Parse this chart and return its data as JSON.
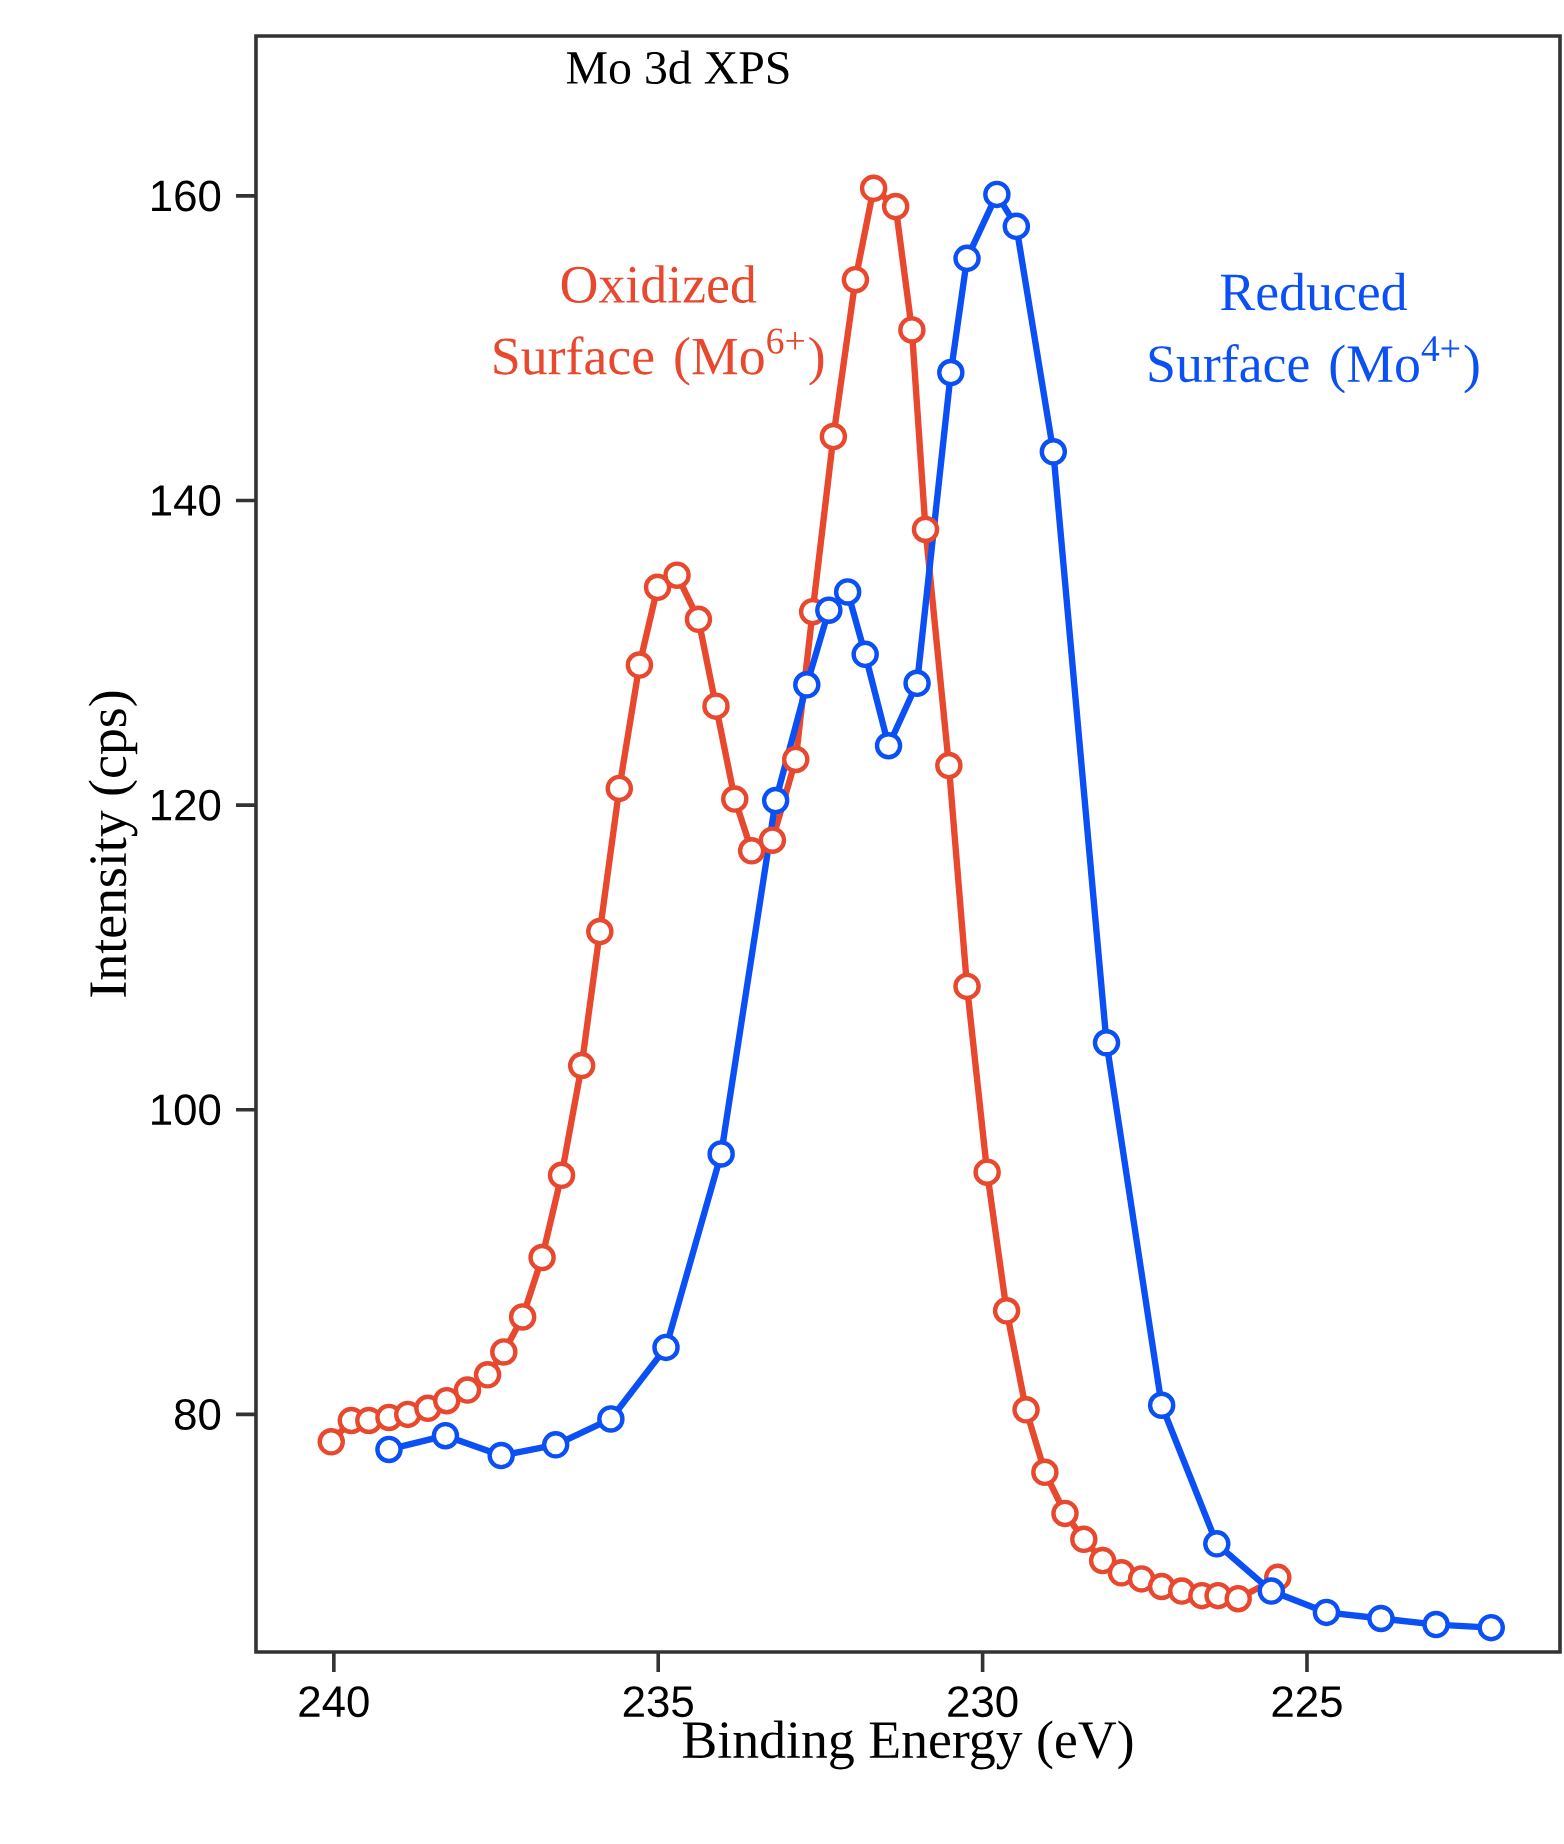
{
  "chart_data": {
    "type": "line",
    "title": "Mo 3d XPS",
    "xlabel": "Binding Energy (eV)",
    "ylabel": "Intensity (cps)",
    "xlim": [
      241.2,
      221.1
    ],
    "ylim": [
      64.4,
      170.5
    ],
    "xticks": [
      240,
      235,
      230,
      225
    ],
    "yticks": [
      80,
      100,
      120,
      140,
      160
    ],
    "grid": false,
    "legend": false,
    "marker": "circle",
    "line_style": "solid",
    "series": [
      {
        "name": "Oxidized Surface (Mo$^{6+}$)",
        "color": "#e8482e",
        "x": [
          240.04,
          239.73,
          239.46,
          239.15,
          238.86,
          238.55,
          238.26,
          237.94,
          237.63,
          237.38,
          237.09,
          236.79,
          236.49,
          236.18,
          235.9,
          235.6,
          235.29,
          235.01,
          234.71,
          234.38,
          234.11,
          233.82,
          233.56,
          233.24,
          232.88,
          232.62,
          232.3,
          231.96,
          231.68,
          231.34,
          231.09,
          230.88,
          230.52,
          230.24,
          229.93,
          229.63,
          229.33,
          229.04,
          228.73,
          228.44,
          228.15,
          227.86,
          227.55,
          227.24,
          226.93,
          226.62,
          226.37,
          226.06,
          225.45
        ],
        "values": [
          78.2,
          79.6,
          79.6,
          79.8,
          80.0,
          80.4,
          80.9,
          81.6,
          82.6,
          84.1,
          86.4,
          90.3,
          95.7,
          102.9,
          111.7,
          121.1,
          129.2,
          134.3,
          135.1,
          132.2,
          126.5,
          120.4,
          117.0,
          117.7,
          123.0,
          132.7,
          144.2,
          154.5,
          160.5,
          159.3,
          151.2,
          138.1,
          122.6,
          108.1,
          95.9,
          86.8,
          80.3,
          76.2,
          73.5,
          71.8,
          70.4,
          69.6,
          69.2,
          68.7,
          68.4,
          68.1,
          68.1,
          67.9,
          69.3
        ]
      },
      {
        "name": "Reduced Surface (Mo$^{4+}$)",
        "color": "#0a50f5",
        "x": [
          239.15,
          238.28,
          237.42,
          236.58,
          235.73,
          234.88,
          234.03,
          233.19,
          232.71,
          232.37,
          232.08,
          231.81,
          231.45,
          231.01,
          230.49,
          230.24,
          229.78,
          229.48,
          228.91,
          228.09,
          227.24,
          226.39,
          225.55,
          224.7,
          223.86,
          223.01,
          222.16
        ],
        "values": [
          77.7,
          78.6,
          77.3,
          78.0,
          79.7,
          84.4,
          97.1,
          120.3,
          127.9,
          132.8,
          134.0,
          129.9,
          123.9,
          128.0,
          148.4,
          155.9,
          160.1,
          158.0,
          143.2,
          104.4,
          80.6,
          71.5,
          68.4,
          67.0,
          66.6,
          66.2,
          66.0
        ]
      }
    ]
  }
}
